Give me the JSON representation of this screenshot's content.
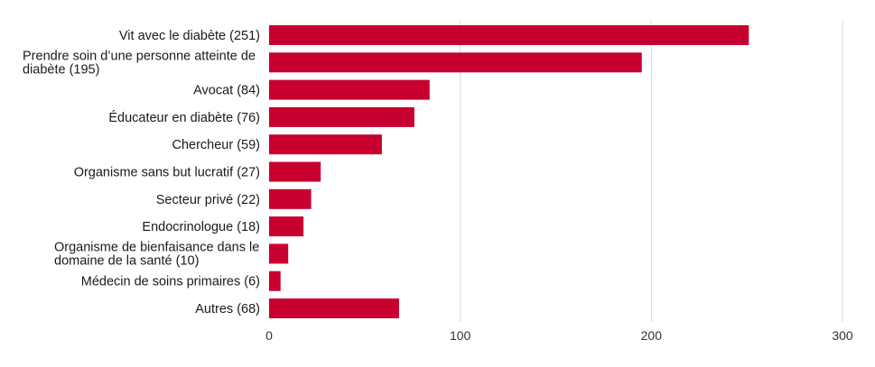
{
  "chart_data": {
    "type": "bar",
    "orientation": "horizontal",
    "categories": [
      "Vit avec le diabète (251)",
      "Prendre soin d’une personne atteinte de diabète (195)",
      "Avocat (84)",
      "Éducateur en diabète (76)",
      "Chercheur (59)",
      "Organisme sans but lucratif (27)",
      "Secteur privé (22)",
      "Endocrinologue (18)",
      "Organisme de bienfaisance dans le domaine de la santé (10)",
      "Médecin de soins primaires (6)",
      "Autres (68)"
    ],
    "label_lines": [
      [
        "Vit avec le diabète (251)"
      ],
      [
        "Prendre soin d’une personne atteinte de",
        "diabète (195)"
      ],
      [
        "Avocat (84)"
      ],
      [
        "Éducateur en diabète (76)"
      ],
      [
        "Chercheur (59)"
      ],
      [
        "Organisme sans but lucratif (27)"
      ],
      [
        "Secteur privé (22)"
      ],
      [
        "Endocrinologue (18)"
      ],
      [
        "Organisme de bienfaisance dans le",
        "domaine de la santé (10)"
      ],
      [
        "Médecin de soins primaires (6)"
      ],
      [
        "Autres (68)"
      ]
    ],
    "values": [
      251,
      195,
      84,
      76,
      59,
      27,
      22,
      18,
      10,
      6,
      68
    ],
    "xlim": [
      0,
      300
    ],
    "x_ticks": [
      0,
      100,
      200,
      300
    ],
    "grid": true,
    "legend": "none",
    "bar_color": "#c8002f",
    "title": "",
    "xlabel": "",
    "ylabel": ""
  }
}
